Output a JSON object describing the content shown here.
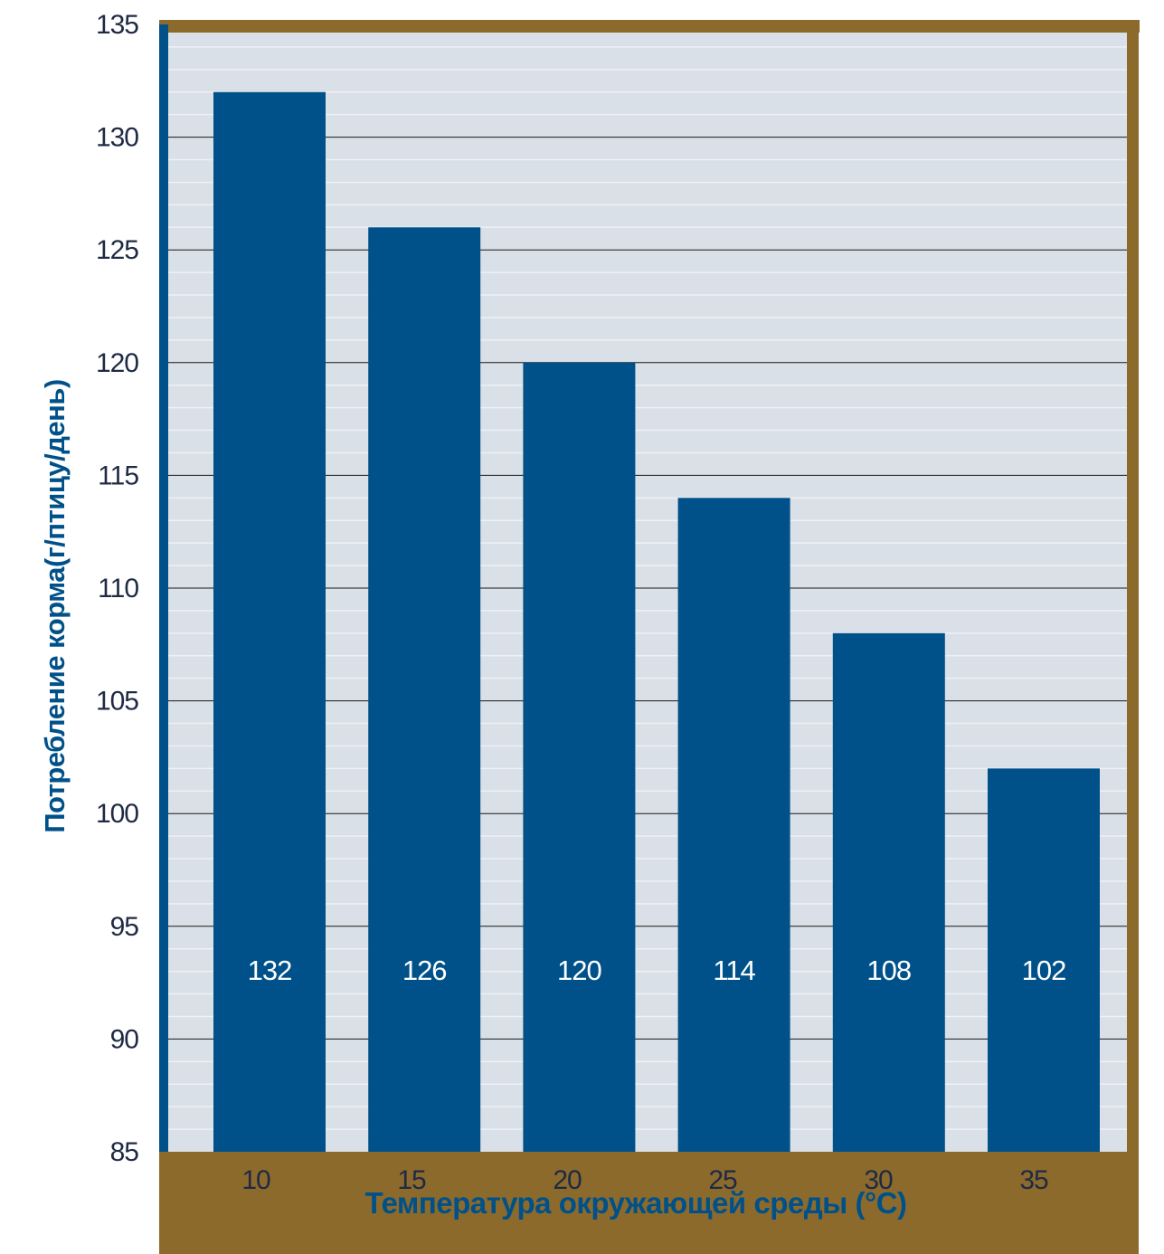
{
  "chart_data": {
    "type": "bar",
    "xlabel": "Температура окружающей среды (°C)",
    "ylabel": "Потребление корма(г/птицу/день)",
    "categories": [
      "10",
      "15",
      "20",
      "25",
      "30",
      "35"
    ],
    "values": [
      132,
      126,
      120,
      114,
      108,
      102
    ],
    "data_labels": [
      "132",
      "126",
      "120",
      "114",
      "108",
      "102"
    ],
    "ylim": [
      85,
      135
    ],
    "yticks": [
      "85",
      "90",
      "95",
      "100",
      "105",
      "110",
      "115",
      "120",
      "125",
      "130",
      "135"
    ],
    "grid": true,
    "legend": "none"
  },
  "colors": {
    "bar": "#005189",
    "plot_background": "#d9e0e7",
    "frame": "#8c6a2c",
    "text": "#1f2a44",
    "axis_label": "#005189",
    "minor_grid": "#eef1f5",
    "major_grid": "#1a1a1a"
  }
}
